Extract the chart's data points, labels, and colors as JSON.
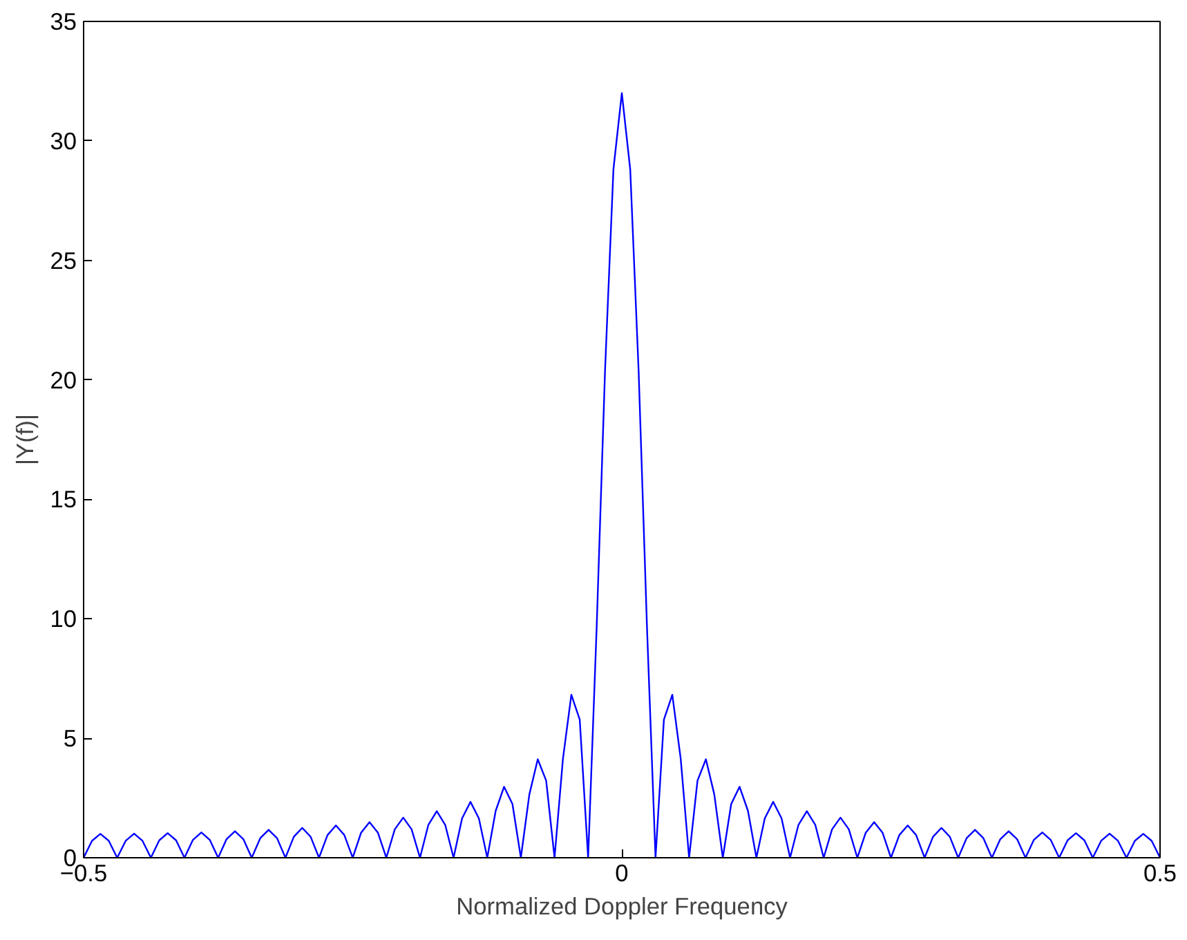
{
  "chart_data": {
    "type": "line",
    "xlabel": "Normalized Doppler Frequency",
    "ylabel": "|Y(f)|",
    "xlim": [
      -0.5,
      0.5
    ],
    "xticks": [
      {
        "value": -0.5,
        "label": "−0.5"
      },
      0,
      0.5
    ],
    "ylim": [
      0,
      35
    ],
    "yticks": [
      0,
      5,
      10,
      15,
      20,
      25,
      30,
      35
    ],
    "grid": false,
    "marker": "none",
    "line_style": "solid",
    "x": [
      -0.5,
      -0.4922,
      -0.4844,
      -0.4766,
      -0.4688,
      -0.4609,
      -0.4531,
      -0.4453,
      -0.4375,
      -0.4297,
      -0.4219,
      -0.4141,
      -0.4063,
      -0.3984,
      -0.3906,
      -0.3828,
      -0.375,
      -0.3672,
      -0.3594,
      -0.3516,
      -0.3438,
      -0.3359,
      -0.3281,
      -0.3203,
      -0.3125,
      -0.3047,
      -0.2969,
      -0.2891,
      -0.2813,
      -0.2734,
      -0.2656,
      -0.2578,
      -0.25,
      -0.2422,
      -0.2344,
      -0.2266,
      -0.2188,
      -0.2109,
      -0.2031,
      -0.1953,
      -0.1875,
      -0.1797,
      -0.1719,
      -0.1641,
      -0.1563,
      -0.1484,
      -0.1406,
      -0.1328,
      -0.125,
      -0.1172,
      -0.1094,
      -0.1016,
      -0.0938,
      -0.0859,
      -0.0781,
      -0.0703,
      -0.0625,
      -0.0547,
      -0.0469,
      -0.0391,
      -0.0313,
      -0.0234,
      -0.0156,
      -0.0078,
      0,
      0.0078,
      0.0156,
      0.0234,
      0.0313,
      0.0391,
      0.0469,
      0.0547,
      0.0625,
      0.0703,
      0.0781,
      0.0859,
      0.0938,
      0.1016,
      0.1094,
      0.1172,
      0.125,
      0.1328,
      0.1406,
      0.1484,
      0.1563,
      0.1641,
      0.1719,
      0.1797,
      0.1875,
      0.1953,
      0.2031,
      0.2109,
      0.2188,
      0.2266,
      0.2344,
      0.2422,
      0.25,
      0.2578,
      0.2656,
      0.2734,
      0.2813,
      0.2891,
      0.2969,
      0.3047,
      0.3125,
      0.3203,
      0.3281,
      0.3359,
      0.3438,
      0.3516,
      0.3594,
      0.3672,
      0.375,
      0.3828,
      0.3906,
      0.3984,
      0.4063,
      0.4141,
      0.4219,
      0.4297,
      0.4375,
      0.4453,
      0.4531,
      0.4609,
      0.4688,
      0.4766,
      0.4844,
      0.4922,
      0.5
    ],
    "series": [
      {
        "color": "#0000ff",
        "values": [
          0,
          0.71,
          1.0,
          0.71,
          0,
          0.71,
          1.01,
          0.71,
          0,
          0.73,
          1.03,
          0.73,
          0,
          0.75,
          1.06,
          0.75,
          0,
          0.78,
          1.11,
          0.78,
          0,
          0.82,
          1.17,
          0.82,
          0,
          0.88,
          1.25,
          0.88,
          0,
          0.95,
          1.35,
          0.95,
          0,
          1.05,
          1.49,
          1.05,
          0,
          1.19,
          1.68,
          1.19,
          0,
          1.38,
          1.95,
          1.38,
          0,
          1.65,
          2.34,
          1.65,
          0,
          1.96,
          2.97,
          2.25,
          0,
          2.65,
          4.12,
          3.23,
          0,
          4.14,
          6.82,
          5.78,
          0,
          9.61,
          20.38,
          28.81,
          32,
          28.81,
          20.38,
          9.61,
          0,
          5.78,
          6.82,
          4.14,
          0,
          3.23,
          4.12,
          2.65,
          0,
          2.25,
          2.97,
          1.96,
          0,
          1.65,
          2.34,
          1.65,
          0,
          1.38,
          1.95,
          1.38,
          0,
          1.19,
          1.68,
          1.19,
          0,
          1.05,
          1.49,
          1.05,
          0,
          0.95,
          1.35,
          0.95,
          0,
          0.88,
          1.25,
          0.88,
          0,
          0.82,
          1.17,
          0.82,
          0,
          0.78,
          1.11,
          0.78,
          0,
          0.75,
          1.06,
          0.75,
          0,
          0.73,
          1.03,
          0.73,
          0,
          0.71,
          1.01,
          0.71,
          0,
          0.71,
          1.0,
          0.71,
          0
        ]
      }
    ]
  }
}
